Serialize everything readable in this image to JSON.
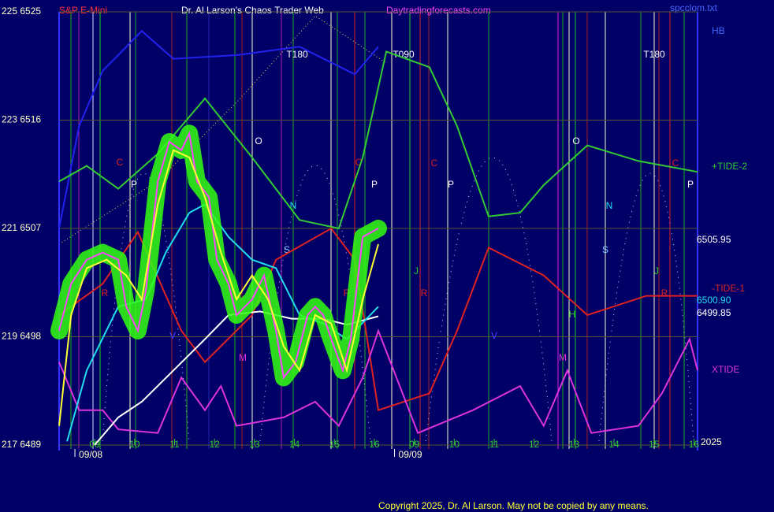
{
  "header": {
    "instrument": "S&P E-Mini",
    "title": "Dr. Al Larson's Chaos Trader Web",
    "website": "Daytradingforecasts.com",
    "file": "spcclom.txt"
  },
  "chart_data": {
    "type": "line",
    "xlim": [
      -0.89,
      15.09
    ],
    "ylim": [
      6489,
      6525
    ],
    "yticks": [
      {
        "value": 6489,
        "label": "217 6489"
      },
      {
        "value": 6498,
        "label": "219 6498"
      },
      {
        "value": 6507,
        "label": "221 6507"
      },
      {
        "value": 6516,
        "label": "223 6516"
      },
      {
        "value": 6525,
        "label": "225 6525"
      }
    ],
    "xticks": [
      {
        "value": 0,
        "label": "09"
      },
      {
        "value": 1,
        "label": "10"
      },
      {
        "value": 2,
        "label": "11"
      },
      {
        "value": 3,
        "label": "12"
      },
      {
        "value": 4,
        "label": "13"
      },
      {
        "value": 5,
        "label": "14"
      },
      {
        "value": 6,
        "label": "15"
      },
      {
        "value": 7,
        "label": "16"
      },
      {
        "value": 8,
        "label": "09"
      },
      {
        "value": 9,
        "label": "10"
      },
      {
        "value": 10,
        "label": "11"
      },
      {
        "value": 11,
        "label": "12"
      },
      {
        "value": 12,
        "label": "13"
      },
      {
        "value": 13,
        "label": "14"
      },
      {
        "value": 14,
        "label": "15"
      },
      {
        "value": 15,
        "label": "16"
      }
    ],
    "dates": [
      {
        "value": -0.1,
        "label": "09/08"
      },
      {
        "value": 7.9,
        "label": "09/09"
      }
    ],
    "year": "2025",
    "grid": true,
    "series": [
      {
        "name": "HB",
        "color": "#2222ee",
        "x": [
          -0.89,
          -0.39,
          0.2,
          1.18,
          1.97,
          3.55,
          5.13,
          6.51,
          7.1
        ],
        "values": [
          6507.0,
          6515.5,
          6520.1,
          6523.4,
          6521.1,
          6521.4,
          6522.1,
          6519.8,
          6522.1
        ]
      },
      {
        "name": "+TIDE-2",
        "color": "#33cc33",
        "x": [
          -0.89,
          -0.2,
          0.59,
          1.58,
          2.76,
          3.94,
          5.13,
          6.11,
          6.71,
          7.3,
          8.38,
          9.07,
          9.86,
          10.65,
          11.24,
          12.33,
          13.61,
          15.09
        ],
        "values": [
          6510.9,
          6512.2,
          6510.3,
          6513.2,
          6517.8,
          6512.9,
          6507.7,
          6507.0,
          6512.9,
          6521.7,
          6520.4,
          6515.5,
          6508.0,
          6508.3,
          6510.6,
          6513.9,
          6512.6,
          6511.7
        ]
      },
      {
        "name": "-TIDE-1",
        "color": "#dd2222",
        "x": [
          -0.89,
          0.2,
          1.08,
          2.17,
          2.76,
          3.94,
          4.54,
          5.92,
          6.51,
          7.1,
          8.38,
          9.07,
          9.86,
          11.24,
          12.33,
          13.81,
          15.09
        ],
        "values": [
          6499.8,
          6502.4,
          6506.7,
          6498.5,
          6495.9,
          6499.8,
          6504.4,
          6507.0,
          6504.4,
          6491.9,
          6493.3,
          6498.5,
          6505.4,
          6503.1,
          6499.8,
          6501.4,
          6501.4
        ]
      },
      {
        "name": "XTIDE",
        "color": "#dd33dd",
        "x": [
          -0.89,
          -0.39,
          0.2,
          0.59,
          1.58,
          2.17,
          2.76,
          3.16,
          3.55,
          4.73,
          5.52,
          6.11,
          6.71,
          7.1,
          8.09,
          9.47,
          10.65,
          11.24,
          11.83,
          12.43,
          13.61,
          14.2,
          14.89,
          15.09
        ],
        "values": [
          6495.9,
          6491.9,
          6491.9,
          6490.3,
          6490.0,
          6494.6,
          6491.9,
          6493.9,
          6490.6,
          6491.3,
          6492.6,
          6490.6,
          6494.6,
          6498.5,
          6490.0,
          6491.9,
          6493.9,
          6490.6,
          6495.2,
          6490.0,
          6490.6,
          6493.3,
          6497.8,
          6495.2
        ]
      },
      {
        "color": "#ffffff",
        "x": [
          0,
          0.59,
          1.18,
          1.97,
          2.76,
          3.35,
          4.14,
          4.93,
          5.72,
          6.31,
          7.1
        ],
        "values": [
          6489.0,
          6491.3,
          6492.6,
          6495.2,
          6497.8,
          6499.8,
          6500.1,
          6499.5,
          6499.5,
          6499.0,
          6499.7
        ]
      },
      {
        "color": "#22ddee",
        "x": [
          -0.69,
          -0.2,
          0.59,
          1.28,
          1.78,
          2.37,
          2.76,
          3.35,
          3.94,
          4.54,
          5.13,
          5.72,
          6.31,
          7.1
        ],
        "values": [
          6489.3,
          6495.2,
          6500.5,
          6501.1,
          6505.0,
          6508.3,
          6509.0,
          6506.3,
          6504.4,
          6503.7,
          6499.8,
          6499.1,
          6497.8,
          6500.5
        ]
      },
      {
        "color": "#ff44ff",
        "halo": "#33ff11",
        "x": [
          -0.89,
          -0.59,
          -0.2,
          0.2,
          0.59,
          0.79,
          1.08,
          1.28,
          1.58,
          1.87,
          2.17,
          2.37,
          2.56,
          2.86,
          3.06,
          3.35,
          3.55,
          3.94,
          4.24,
          4.54,
          4.73,
          5.03,
          5.33,
          5.52,
          5.72,
          5.92,
          6.21,
          6.41,
          6.71,
          7.1
        ],
        "values": [
          6498.5,
          6502.4,
          6504.4,
          6505.0,
          6504.4,
          6500.5,
          6498.5,
          6501.8,
          6510.9,
          6514.2,
          6513.5,
          6514.9,
          6510.9,
          6509.6,
          6504.4,
          6502.4,
          6499.8,
          6501.1,
          6503.1,
          6498.5,
          6494.6,
          6495.9,
          6499.8,
          6500.5,
          6499.8,
          6497.8,
          6495.2,
          6497.8,
          6506.3,
          6507.0
        ]
      },
      {
        "color": "#ffff33",
        "x": [
          -0.89,
          -0.59,
          -0.2,
          0.3,
          0.79,
          1.18,
          1.58,
          1.97,
          2.37,
          2.76,
          3.16,
          3.55,
          3.94,
          4.34,
          4.73,
          5.13,
          5.52,
          5.92,
          6.31,
          6.71,
          7.1
        ],
        "values": [
          6490.6,
          6499.8,
          6503.7,
          6504.4,
          6503.1,
          6501.1,
          6509.0,
          6513.5,
          6512.9,
          6509.6,
          6505.0,
          6501.1,
          6503.1,
          6501.1,
          6497.2,
          6495.2,
          6499.8,
          6499.1,
          6495.2,
          6501.1,
          6505.7
        ]
      }
    ],
    "price_labels": [
      "6505.95",
      "6500.90",
      "6499.85"
    ],
    "annotations": [
      "T180",
      "T090",
      "T180",
      "C",
      "P",
      "O",
      "N",
      "S",
      "C",
      "P",
      "C",
      "P",
      "O",
      "N",
      "S",
      "C",
      "P",
      "R",
      "R",
      "J",
      "R",
      "J",
      "R",
      "H",
      "V",
      "V",
      "M",
      "M"
    ]
  },
  "footer": {
    "copyright": "Copyright 2025, Dr. Al Larson. May not be copied by any means."
  }
}
